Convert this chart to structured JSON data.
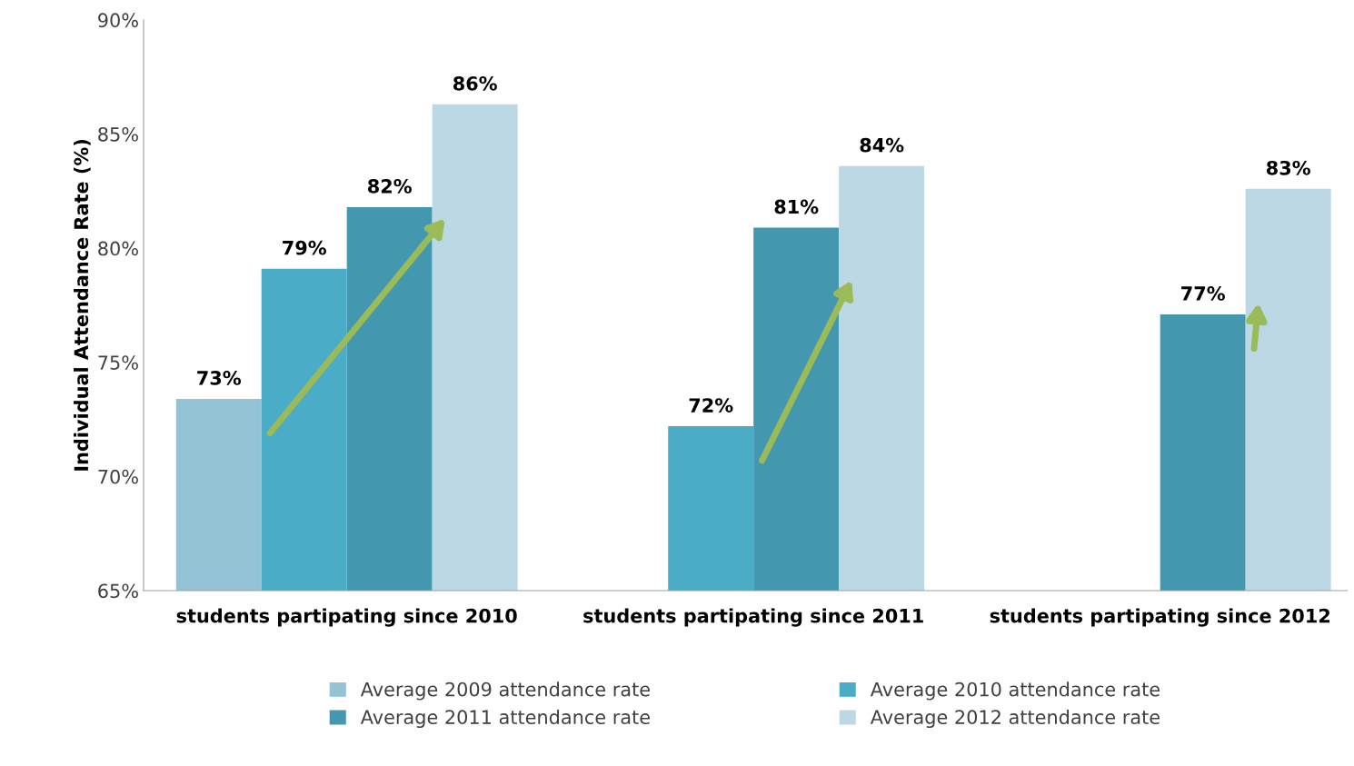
{
  "chart_data": {
    "type": "bar",
    "ylabel": "Individual Attendance Rate (%)",
    "categories": [
      "students partipating since 2010",
      "students partipating since 2011",
      "students partipating since 2012"
    ],
    "series": [
      {
        "name": "Average 2009 attendance rate",
        "color": "#93c3d4",
        "values": [
          73.4,
          null,
          null
        ],
        "value_labels": [
          "73%",
          null,
          null
        ]
      },
      {
        "name": "Average 2010 attendance rate",
        "color": "#4aacc6",
        "values": [
          79.1,
          72.2,
          null
        ],
        "value_labels": [
          "79%",
          "72%",
          null
        ]
      },
      {
        "name": "Average 2011 attendance rate",
        "color": "#4397ae",
        "values": [
          81.8,
          80.9,
          77.1
        ],
        "value_labels": [
          "82%",
          "81%",
          "77%"
        ]
      },
      {
        "name": "Average 2012 attendance rate",
        "color": "#bcd8e4",
        "values": [
          86.3,
          83.6,
          82.6
        ],
        "value_labels": [
          "86%",
          "84%",
          "83%"
        ]
      }
    ],
    "ylim": [
      65,
      90
    ],
    "yticks": [
      {
        "value": 65,
        "label": "65%"
      },
      {
        "value": 70,
        "label": "70%"
      },
      {
        "value": 75,
        "label": "75%"
      },
      {
        "value": 80,
        "label": "80%"
      },
      {
        "value": 85,
        "label": "85%"
      },
      {
        "value": 90,
        "label": "90%"
      }
    ],
    "grid": false,
    "legend": "bottom"
  }
}
